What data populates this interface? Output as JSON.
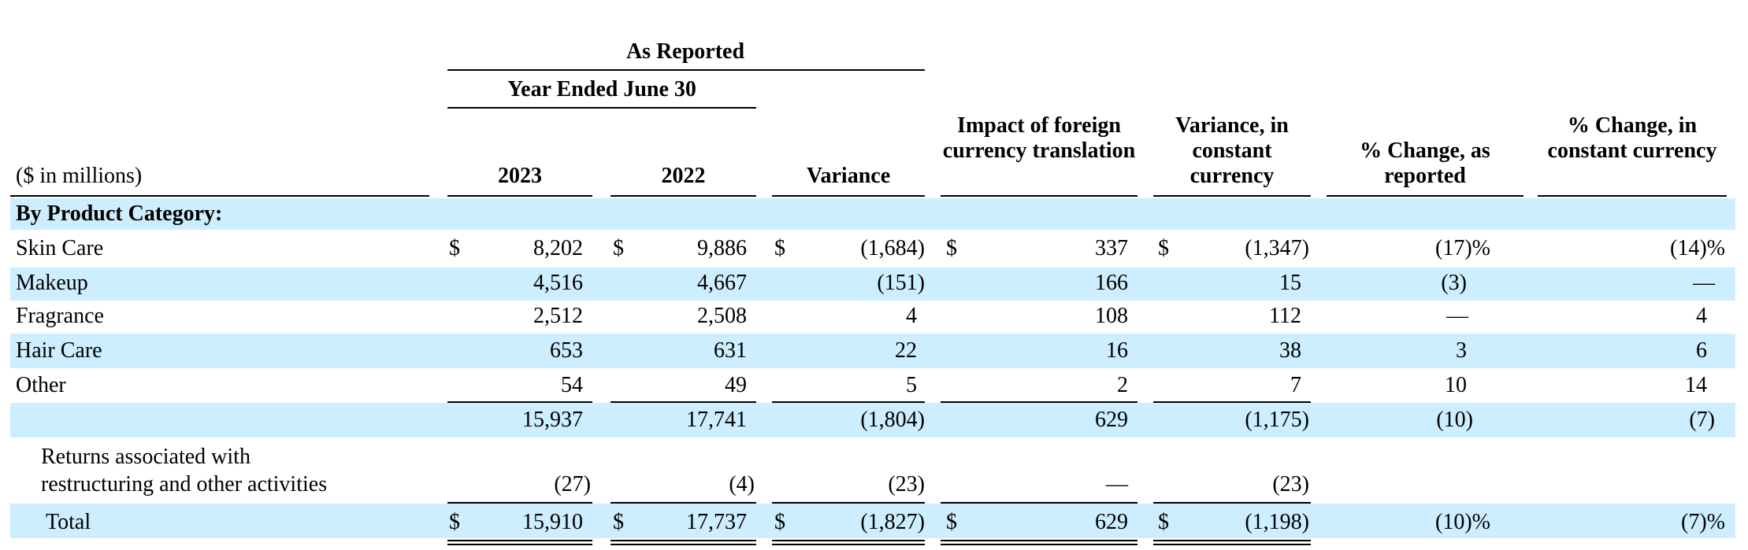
{
  "header": {
    "as_reported": "As Reported",
    "year_ended": "Year Ended June 30",
    "unit_label": "($ in millions)",
    "col_2023": "2023",
    "col_2022": "2022",
    "col_variance": "Variance",
    "col_fx": "Impact of foreign currency translation",
    "col_var_cc": "Variance, in constant currency",
    "col_pct_rep": "% Change, as reported",
    "col_pct_cc": "% Change, in constant currency"
  },
  "section_label": "By Product Category:",
  "currency_symbol": "$",
  "rows": [
    {
      "label": "Skin Care",
      "y2023": "8,202",
      "y2022": "9,886",
      "variance": "(1,684)",
      "fx": "337",
      "var_cc": "(1,347)",
      "pct_rep": "(17)%",
      "pct_cc": "(14)%"
    },
    {
      "label": "Makeup",
      "y2023": "4,516",
      "y2022": "4,667",
      "variance": "(151)",
      "fx": "166",
      "var_cc": "15",
      "pct_rep": "(3)",
      "pct_cc": "—"
    },
    {
      "label": "Fragrance",
      "y2023": "2,512",
      "y2022": "2,508",
      "variance": "4",
      "fx": "108",
      "var_cc": "112",
      "pct_rep": "—",
      "pct_cc": "4"
    },
    {
      "label": "Hair Care",
      "y2023": "653",
      "y2022": "631",
      "variance": "22",
      "fx": "16",
      "var_cc": "38",
      "pct_rep": "3",
      "pct_cc": "6"
    },
    {
      "label": "Other",
      "y2023": "54",
      "y2022": "49",
      "variance": "5",
      "fx": "2",
      "var_cc": "7",
      "pct_rep": "10",
      "pct_cc": "14"
    }
  ],
  "subtotal": {
    "y2023": "15,937",
    "y2022": "17,741",
    "variance": "(1,804)",
    "fx": "629",
    "var_cc": "(1,175)",
    "pct_rep": "(10)",
    "pct_cc": "(7)"
  },
  "returns": {
    "label_line1": "Returns associated with",
    "label_line2": "restructuring and other activities",
    "y2023": "(27)",
    "y2022": "(4)",
    "variance": "(23)",
    "fx": "—",
    "var_cc": "(23)"
  },
  "total": {
    "label": "Total",
    "y2023": "15,910",
    "y2022": "17,737",
    "variance": "(1,827)",
    "fx": "629",
    "var_cc": "(1,198)",
    "pct_rep": "(10)%",
    "pct_cc": "(7)%"
  },
  "colors": {
    "band": "#cdeefe",
    "text": "#000000"
  }
}
